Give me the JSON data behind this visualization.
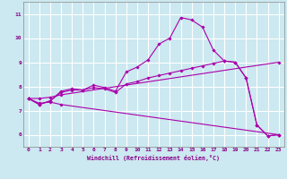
{
  "background_color": "#cce8f0",
  "line_color": "#aa00aa",
  "grid_color": "#ffffff",
  "xlabel": "Windchill (Refroidissement éolien,°C)",
  "ylim": [
    5.5,
    11.5
  ],
  "xlim": [
    -0.5,
    23.5
  ],
  "yticks": [
    6,
    7,
    8,
    9,
    10,
    11
  ],
  "xticks": [
    0,
    1,
    2,
    3,
    4,
    5,
    6,
    7,
    8,
    9,
    10,
    11,
    12,
    13,
    14,
    15,
    16,
    17,
    18,
    19,
    20,
    21,
    22,
    23
  ],
  "line1_x": [
    0,
    1,
    2,
    3,
    4,
    5,
    6,
    7,
    8,
    9,
    10,
    11,
    12,
    13,
    14,
    15,
    16,
    17,
    18,
    19,
    20,
    21,
    22,
    23
  ],
  "line1_y": [
    7.5,
    7.25,
    7.4,
    7.8,
    7.9,
    7.85,
    8.05,
    7.95,
    7.8,
    8.6,
    8.8,
    9.1,
    9.75,
    10.0,
    10.85,
    10.75,
    10.45,
    9.5,
    9.05,
    9.0,
    8.35,
    6.4,
    5.95,
    6.0
  ],
  "line2_x": [
    0,
    1,
    2,
    3,
    4,
    5,
    6,
    7,
    8,
    9,
    10,
    11,
    12,
    13,
    14,
    15,
    16,
    17,
    18,
    19,
    20,
    21,
    22,
    23
  ],
  "line2_y": [
    7.5,
    7.25,
    7.4,
    7.75,
    7.85,
    7.85,
    7.95,
    7.9,
    7.75,
    8.1,
    8.2,
    8.35,
    8.45,
    8.55,
    8.65,
    8.75,
    8.85,
    8.95,
    9.05,
    9.0,
    8.35,
    6.4,
    5.95,
    6.0
  ],
  "line3_x": [
    0,
    1,
    2,
    3,
    23
  ],
  "line3_y": [
    7.5,
    7.3,
    7.35,
    7.25,
    6.0
  ],
  "line4_x": [
    0,
    1,
    2,
    3,
    23
  ],
  "line4_y": [
    7.5,
    7.5,
    7.55,
    7.65,
    9.0
  ]
}
